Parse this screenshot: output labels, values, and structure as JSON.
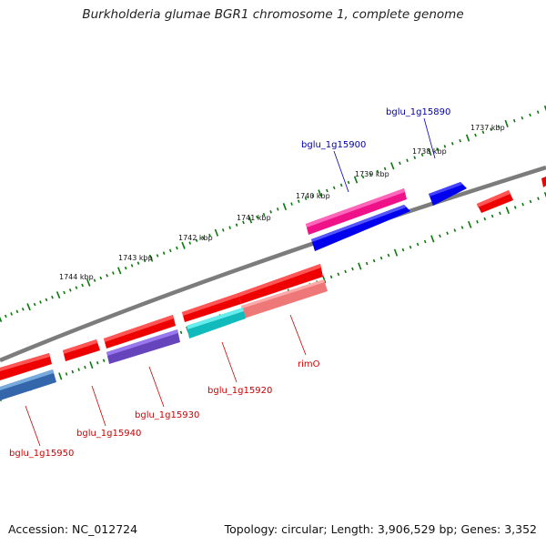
{
  "title": "Burkholderia glumae BGR1 chromosome 1, complete genome",
  "footer": {
    "accession": "Accession: NC_012724",
    "summary": "Topology: circular; Length: 3,906,529 bp; Genes: 3,352"
  },
  "colors": {
    "backbone": "#808080",
    "tick": "#0a7a0a",
    "label_forward": "#0000aa",
    "label_reverse": "#cc0000"
  },
  "tick_labels": [
    "1744 kbp",
    "1743 kbp",
    "1742 kbp",
    "1741 kbp",
    "1740 kbp",
    "1739 kbp",
    "1738 kbp",
    "1737 kbp"
  ],
  "genes": [
    {
      "name": "bglu_1g15890",
      "strand": "+",
      "color": "#0000ee",
      "labeled": true
    },
    {
      "name": "bglu_1g15900",
      "strand": "+",
      "color": "#0000ee",
      "labeled": true
    },
    {
      "name": "unnamed-pink",
      "strand": "+",
      "color": "#ee1188",
      "labeled": false
    },
    {
      "name": "rimO",
      "strand": "-",
      "color": "#ee7777",
      "labeled": true
    },
    {
      "name": "bglu_1g15920",
      "strand": "-",
      "color": "#11bbbb",
      "labeled": true
    },
    {
      "name": "bglu_1g15930",
      "strand": "-",
      "color": "#6644bb",
      "labeled": true
    },
    {
      "name": "bglu_1g15940",
      "strand": "-",
      "color": "#ee0000",
      "labeled": true
    },
    {
      "name": "bglu_1g15950",
      "strand": "-",
      "color": "#3366aa",
      "labeled": true
    }
  ]
}
